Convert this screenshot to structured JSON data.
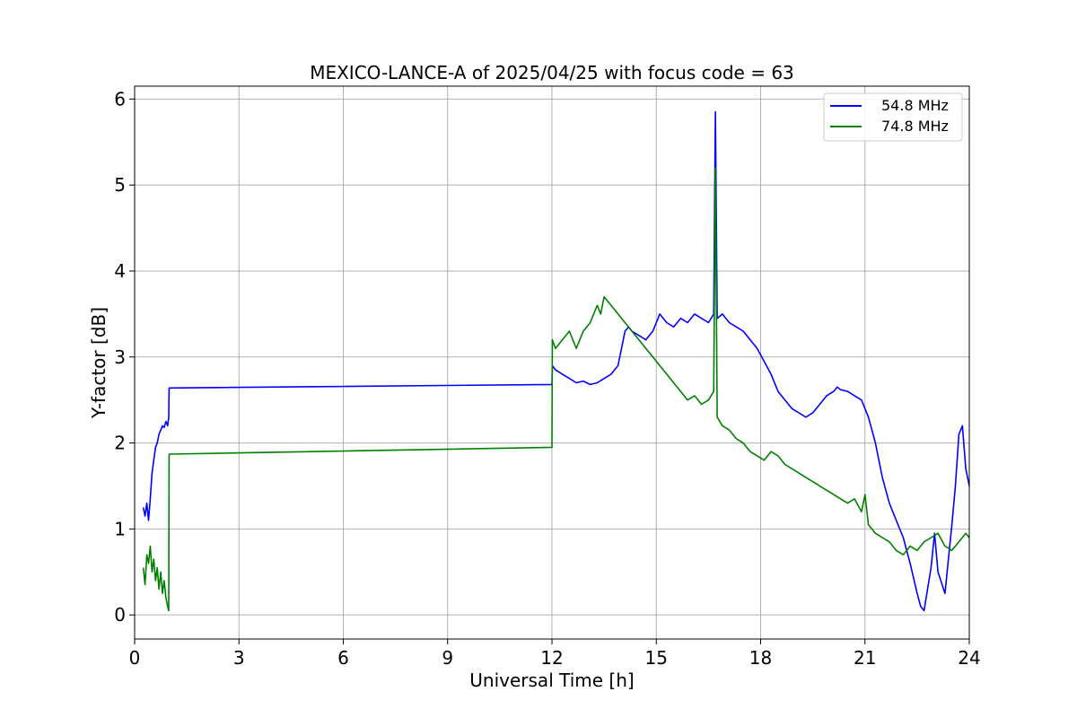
{
  "chart_data": {
    "type": "line",
    "title": "MEXICO-LANCE-A of 2025/04/25 with focus code = 63",
    "xlabel": "Universal Time [h]",
    "ylabel": "Y-factor [dB]",
    "xlim": [
      0,
      24
    ],
    "ylim": [
      -0.28,
      6.15
    ],
    "xticks": [
      0,
      3,
      6,
      9,
      12,
      15,
      18,
      21,
      24
    ],
    "yticks": [
      0,
      1,
      2,
      3,
      4,
      5,
      6
    ],
    "grid": true,
    "legend_position": "top-right",
    "series": [
      {
        "name": "54.8 MHz",
        "color": "#0000ff",
        "x": [
          0.25,
          0.3,
          0.35,
          0.4,
          0.45,
          0.5,
          0.55,
          0.6,
          0.65,
          0.7,
          0.75,
          0.8,
          0.85,
          0.9,
          0.95,
          0.98,
          0.99,
          12.0,
          12.01,
          12.1,
          12.3,
          12.5,
          12.7,
          12.9,
          13.1,
          13.3,
          13.5,
          13.7,
          13.9,
          14.1,
          14.2,
          14.3,
          14.5,
          14.7,
          14.9,
          15.1,
          15.3,
          15.5,
          15.7,
          15.9,
          16.1,
          16.3,
          16.5,
          16.65,
          16.7,
          16.75,
          16.9,
          17.1,
          17.3,
          17.5,
          17.7,
          17.9,
          18.1,
          18.3,
          18.5,
          18.7,
          18.9,
          19.1,
          19.3,
          19.5,
          19.7,
          19.9,
          20.1,
          20.2,
          20.3,
          20.5,
          20.7,
          20.9,
          21.0,
          21.1,
          21.3,
          21.5,
          21.7,
          21.9,
          22.1,
          22.3,
          22.5,
          22.6,
          22.7,
          22.9,
          23.0,
          23.1,
          23.3,
          23.5,
          23.6,
          23.7,
          23.8,
          23.9,
          24.0
        ],
        "y": [
          1.25,
          1.15,
          1.3,
          1.1,
          1.35,
          1.65,
          1.8,
          1.95,
          2.0,
          2.1,
          2.15,
          2.2,
          2.18,
          2.25,
          2.2,
          2.3,
          2.64,
          2.68,
          2.9,
          2.85,
          2.8,
          2.75,
          2.7,
          2.72,
          2.68,
          2.7,
          2.75,
          2.8,
          2.9,
          3.3,
          3.35,
          3.3,
          3.25,
          3.2,
          3.3,
          3.5,
          3.4,
          3.35,
          3.45,
          3.4,
          3.5,
          3.45,
          3.4,
          3.5,
          5.85,
          3.45,
          3.5,
          3.4,
          3.35,
          3.3,
          3.2,
          3.1,
          2.95,
          2.8,
          2.6,
          2.5,
          2.4,
          2.35,
          2.3,
          2.35,
          2.45,
          2.55,
          2.6,
          2.65,
          2.62,
          2.6,
          2.55,
          2.5,
          2.4,
          2.3,
          2.0,
          1.6,
          1.3,
          1.1,
          0.9,
          0.6,
          0.25,
          0.1,
          0.05,
          0.55,
          0.95,
          0.5,
          0.25,
          1.05,
          1.5,
          2.1,
          2.2,
          1.7,
          1.5
        ]
      },
      {
        "name": "74.8 MHz",
        "color": "#008000",
        "x": [
          0.25,
          0.3,
          0.35,
          0.4,
          0.45,
          0.5,
          0.55,
          0.6,
          0.65,
          0.7,
          0.75,
          0.8,
          0.85,
          0.9,
          0.95,
          0.98,
          0.99,
          12.0,
          12.01,
          12.1,
          12.3,
          12.5,
          12.7,
          12.9,
          13.1,
          13.3,
          13.4,
          13.5,
          13.7,
          13.9,
          14.1,
          14.3,
          14.5,
          14.7,
          14.9,
          15.1,
          15.3,
          15.5,
          15.7,
          15.9,
          16.1,
          16.3,
          16.5,
          16.65,
          16.7,
          16.75,
          16.9,
          17.1,
          17.3,
          17.5,
          17.7,
          17.9,
          18.1,
          18.3,
          18.5,
          18.7,
          18.9,
          19.1,
          19.3,
          19.5,
          19.7,
          19.9,
          20.1,
          20.3,
          20.5,
          20.7,
          20.9,
          21.0,
          21.1,
          21.3,
          21.5,
          21.7,
          21.9,
          22.1,
          22.3,
          22.5,
          22.7,
          22.9,
          23.1,
          23.3,
          23.5,
          23.7,
          23.9,
          24.0
        ],
        "y": [
          0.55,
          0.35,
          0.7,
          0.6,
          0.8,
          0.5,
          0.65,
          0.4,
          0.55,
          0.3,
          0.5,
          0.25,
          0.4,
          0.2,
          0.1,
          0.05,
          1.87,
          1.95,
          3.2,
          3.1,
          3.2,
          3.3,
          3.1,
          3.3,
          3.4,
          3.6,
          3.5,
          3.7,
          3.6,
          3.5,
          3.4,
          3.3,
          3.2,
          3.1,
          3.0,
          2.9,
          2.8,
          2.7,
          2.6,
          2.5,
          2.55,
          2.45,
          2.5,
          2.6,
          5.2,
          2.3,
          2.2,
          2.15,
          2.05,
          2.0,
          1.9,
          1.85,
          1.8,
          1.9,
          1.85,
          1.75,
          1.7,
          1.65,
          1.6,
          1.55,
          1.5,
          1.45,
          1.4,
          1.35,
          1.3,
          1.35,
          1.2,
          1.4,
          1.05,
          0.95,
          0.9,
          0.85,
          0.75,
          0.7,
          0.8,
          0.75,
          0.85,
          0.9,
          0.95,
          0.8,
          0.75,
          0.85,
          0.95,
          0.9
        ]
      }
    ]
  }
}
